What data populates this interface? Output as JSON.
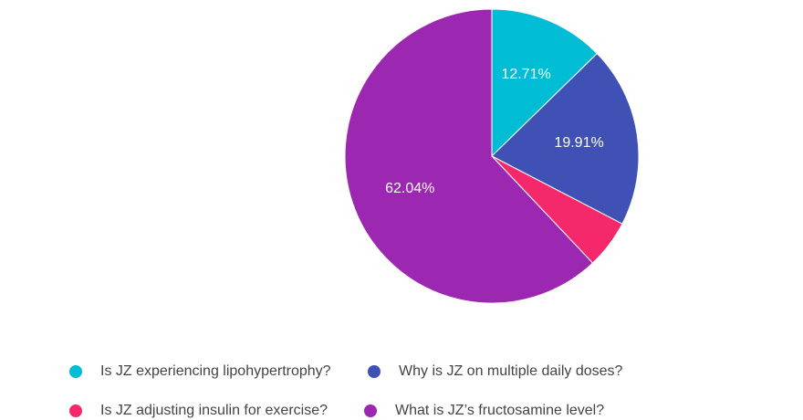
{
  "chart_data": {
    "type": "pie",
    "slices": [
      {
        "label": "Is JZ experiencing lipohypertrophy?",
        "value": 12.71,
        "color": "#00BCD4",
        "data_label": "12.71%"
      },
      {
        "label": "Why is JZ on multiple daily doses?",
        "value": 19.91,
        "color": "#3F51B5",
        "data_label": "19.91%"
      },
      {
        "label": "Is JZ adjusting insulin for exercise?",
        "value": 5.34,
        "color": "#F4286A",
        "data_label": ""
      },
      {
        "label": "What is JZ’s fructosamine level?",
        "value": 62.04,
        "color": "#9C27B0",
        "data_label": "62.04%"
      }
    ],
    "legend_position": "bottom",
    "start_angle": "12 o'clock, clockwise"
  }
}
